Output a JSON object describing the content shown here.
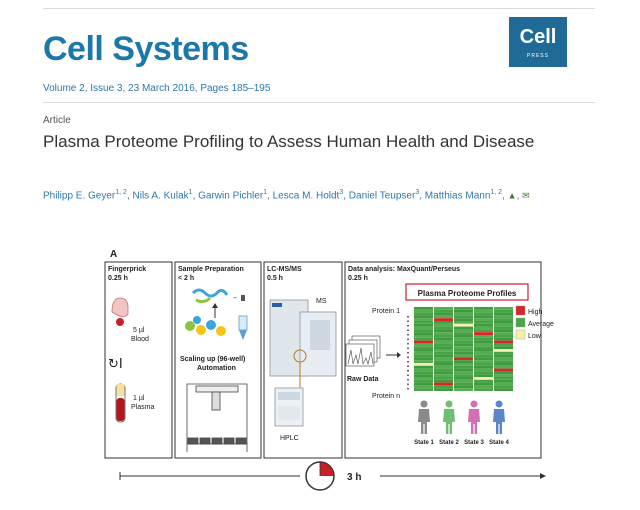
{
  "journal": {
    "title": "Cell Systems",
    "logo_text": "Cell",
    "logo_sub": "PRESS",
    "brand_color": "#1b78a8",
    "volume_line": "Volume 2, Issue 3, 23 March 2016, Pages 185–195"
  },
  "article": {
    "type": "Article",
    "title": "Plasma Proteome Profiling to Assess Human Health and Disease",
    "authors": [
      {
        "name": "Philipp E. Geyer",
        "sup": "1, 2"
      },
      {
        "name": "Nils A. Kulak",
        "sup": "1"
      },
      {
        "name": "Garwin Pichler",
        "sup": "1"
      },
      {
        "name": "Lesca M. Holdt",
        "sup": "3"
      },
      {
        "name": "Daniel Teupser",
        "sup": "3"
      },
      {
        "name": "Matthias Mann",
        "sup": "1, 2"
      }
    ]
  },
  "figure": {
    "panel_label": "A",
    "steps": [
      {
        "title": "Fingerprick",
        "time": "0.25 h"
      },
      {
        "title": "Sample Preparation",
        "time": "< 2 h"
      },
      {
        "title": "LC-MS/MS",
        "time": "0.5 h"
      },
      {
        "title": "Data analysis: MaxQuant/Perseus",
        "time": "0.25 h"
      }
    ],
    "blood_label": "5 µl\nBlood",
    "plasma_label": "1 µl\nPlasma",
    "automation_label": "Scaling up (96-well)\nAutomation",
    "ms_label": "MS",
    "hplc_label": "HPLC",
    "raw_data_label": "Raw Data",
    "profiles_title": "Plasma Proteome Profiles",
    "protein_top": "Protein 1",
    "protein_bottom": "Protein n",
    "legend": [
      {
        "label": "High",
        "color": "#d8262c"
      },
      {
        "label": "Average",
        "color": "#4aa64a"
      },
      {
        "label": "Low",
        "color": "#f3f0b0"
      }
    ],
    "states": [
      "State 1",
      "State 2",
      "State 3",
      "State 4"
    ],
    "state_colors": [
      "#8a8a8a",
      "#6fbf73",
      "#d46fb5",
      "#5d86c9"
    ],
    "total_time": "3 h"
  }
}
